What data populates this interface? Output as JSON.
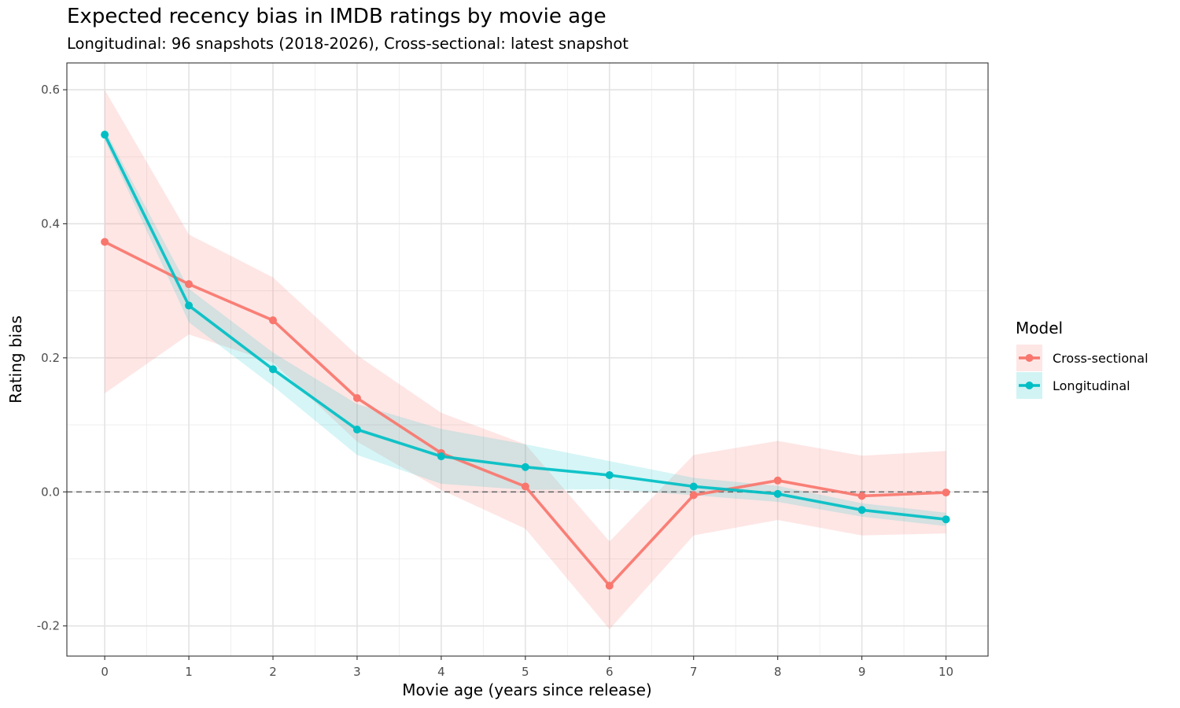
{
  "chart_data": {
    "type": "line",
    "title": "Expected recency bias in IMDB ratings by movie age",
    "subtitle": "Longitudinal: 96 snapshots (2018-2026), Cross-sectional: latest snapshot",
    "xlabel": "Movie age (years since release)",
    "ylabel": "Rating bias",
    "x": [
      0,
      1,
      2,
      3,
      4,
      5,
      6,
      7,
      8,
      9,
      10
    ],
    "xlim": [
      -0.45,
      10.5
    ],
    "ylim": [
      -0.245,
      0.64
    ],
    "x_ticks": [
      0,
      1,
      2,
      3,
      4,
      5,
      6,
      7,
      8,
      9,
      10
    ],
    "x_tick_labels": [
      "0",
      "1",
      "2",
      "3",
      "4",
      "5",
      "6",
      "7",
      "8",
      "9",
      "10"
    ],
    "y_ticks": [
      -0.2,
      0.0,
      0.2,
      0.4,
      0.6
    ],
    "y_tick_labels": [
      "-0.2",
      "0.0",
      "0.2",
      "0.4",
      "0.6"
    ],
    "reference_line": 0,
    "grid": true,
    "legend": {
      "title": "Model",
      "position": "right"
    },
    "series": [
      {
        "name": "Cross-sectional",
        "color": "#F8766D",
        "values": [
          0.373,
          0.31,
          0.256,
          0.14,
          0.058,
          0.008,
          -0.14,
          -0.005,
          0.017,
          -0.006,
          -0.001
        ],
        "lower": [
          0.147,
          0.235,
          0.193,
          0.075,
          0.003,
          -0.055,
          -0.205,
          -0.065,
          -0.042,
          -0.065,
          -0.062
        ],
        "upper": [
          0.6,
          0.384,
          0.32,
          0.204,
          0.118,
          0.071,
          -0.074,
          0.055,
          0.076,
          0.054,
          0.061
        ]
      },
      {
        "name": "Longitudinal",
        "color": "#00BFC4",
        "values": [
          0.533,
          0.278,
          0.183,
          0.093,
          0.053,
          0.037,
          0.025,
          0.008,
          -0.003,
          -0.027,
          -0.041
        ],
        "lower": [
          0.525,
          0.253,
          0.158,
          0.055,
          0.012,
          0.003,
          0.004,
          -0.005,
          -0.015,
          -0.037,
          -0.051
        ],
        "upper": [
          0.541,
          0.303,
          0.208,
          0.131,
          0.094,
          0.071,
          0.046,
          0.021,
          0.009,
          -0.017,
          -0.031
        ]
      }
    ]
  }
}
